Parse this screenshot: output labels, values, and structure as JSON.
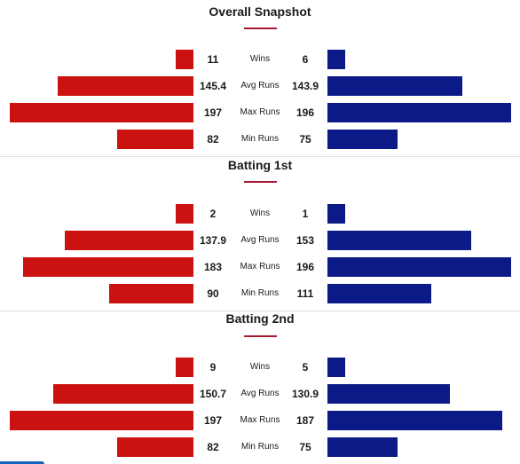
{
  "colors": {
    "team_left": "#cc1111",
    "team_right": "#0b1a86",
    "accent": "#a6192e"
  },
  "bar_scale_max": 197,
  "sections": [
    {
      "title": "Overall Snapshot",
      "rows": [
        {
          "label": "Wins",
          "left": 11,
          "right": 6,
          "left_display": "11",
          "right_display": "6"
        },
        {
          "label": "Avg Runs",
          "left": 145.4,
          "right": 143.9,
          "left_display": "145.4",
          "right_display": "143.9"
        },
        {
          "label": "Max Runs",
          "left": 197,
          "right": 196,
          "left_display": "197",
          "right_display": "196"
        },
        {
          "label": "Min Runs",
          "left": 82,
          "right": 75,
          "left_display": "82",
          "right_display": "75"
        }
      ]
    },
    {
      "title": "Batting 1st",
      "rows": [
        {
          "label": "Wins",
          "left": 2,
          "right": 1,
          "left_display": "2",
          "right_display": "1"
        },
        {
          "label": "Avg Runs",
          "left": 137.9,
          "right": 153,
          "left_display": "137.9",
          "right_display": "153"
        },
        {
          "label": "Max Runs",
          "left": 183,
          "right": 196,
          "left_display": "183",
          "right_display": "196"
        },
        {
          "label": "Min Runs",
          "left": 90,
          "right": 111,
          "left_display": "90",
          "right_display": "111"
        }
      ]
    },
    {
      "title": "Batting 2nd",
      "rows": [
        {
          "label": "Wins",
          "left": 9,
          "right": 5,
          "left_display": "9",
          "right_display": "5"
        },
        {
          "label": "Avg Runs",
          "left": 150.7,
          "right": 130.9,
          "left_display": "150.7",
          "right_display": "130.9"
        },
        {
          "label": "Max Runs",
          "left": 197,
          "right": 187,
          "left_display": "197",
          "right_display": "187"
        },
        {
          "label": "Min Runs",
          "left": 82,
          "right": 75,
          "left_display": "82",
          "right_display": "75"
        }
      ]
    }
  ]
}
